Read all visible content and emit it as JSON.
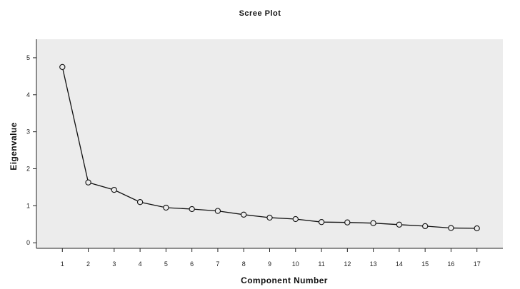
{
  "chart_data": {
    "type": "line",
    "title": "Scree Plot",
    "xlabel": "Component Number",
    "ylabel": "Eigenvalue",
    "x": [
      1,
      2,
      3,
      4,
      5,
      6,
      7,
      8,
      9,
      10,
      11,
      12,
      13,
      14,
      15,
      16,
      17
    ],
    "x_tick_labels": [
      "1",
      "2",
      "3",
      "4",
      "5",
      "6",
      "7",
      "8",
      "9",
      "10",
      "11",
      "12",
      "13",
      "14",
      "15",
      "16",
      "17"
    ],
    "y_ticks": [
      0,
      1,
      2,
      3,
      4,
      5
    ],
    "series": [
      {
        "values": [
          4.75,
          1.63,
          1.43,
          1.1,
          0.95,
          0.91,
          0.86,
          0.76,
          0.68,
          0.64,
          0.56,
          0.55,
          0.53,
          0.49,
          0.45,
          0.4,
          0.39
        ]
      }
    ],
    "xlim": [
      0,
      18
    ],
    "ylim": [
      -0.15,
      5.5
    ],
    "grid": false,
    "marker": "open-circle",
    "colors": {
      "plot_background": "#ececec",
      "line": "#111111"
    }
  }
}
